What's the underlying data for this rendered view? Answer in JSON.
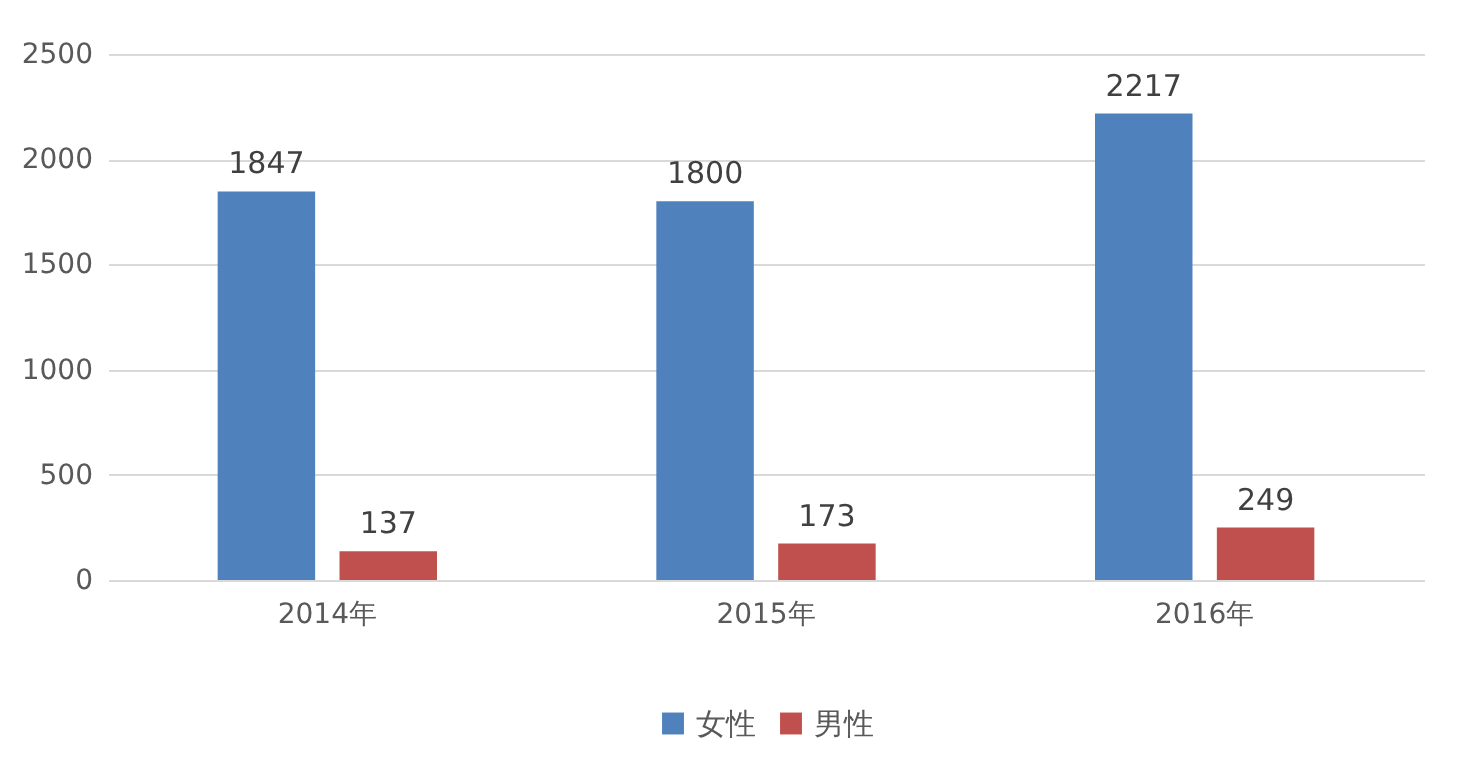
{
  "chart_data": {
    "type": "bar",
    "categories": [
      "2014年",
      "2015年",
      "2016年"
    ],
    "series": [
      {
        "name": "女性",
        "color": "#4f81bd",
        "values": [
          1847,
          1800,
          2217
        ]
      },
      {
        "name": "男性",
        "color": "#c0504d",
        "values": [
          137,
          173,
          249
        ]
      }
    ],
    "ylim": [
      0,
      2500
    ],
    "yticks": [
      0,
      500,
      1000,
      1500,
      2000,
      2500
    ],
    "grid": "y",
    "legend": "bottom",
    "data_labels": true
  }
}
